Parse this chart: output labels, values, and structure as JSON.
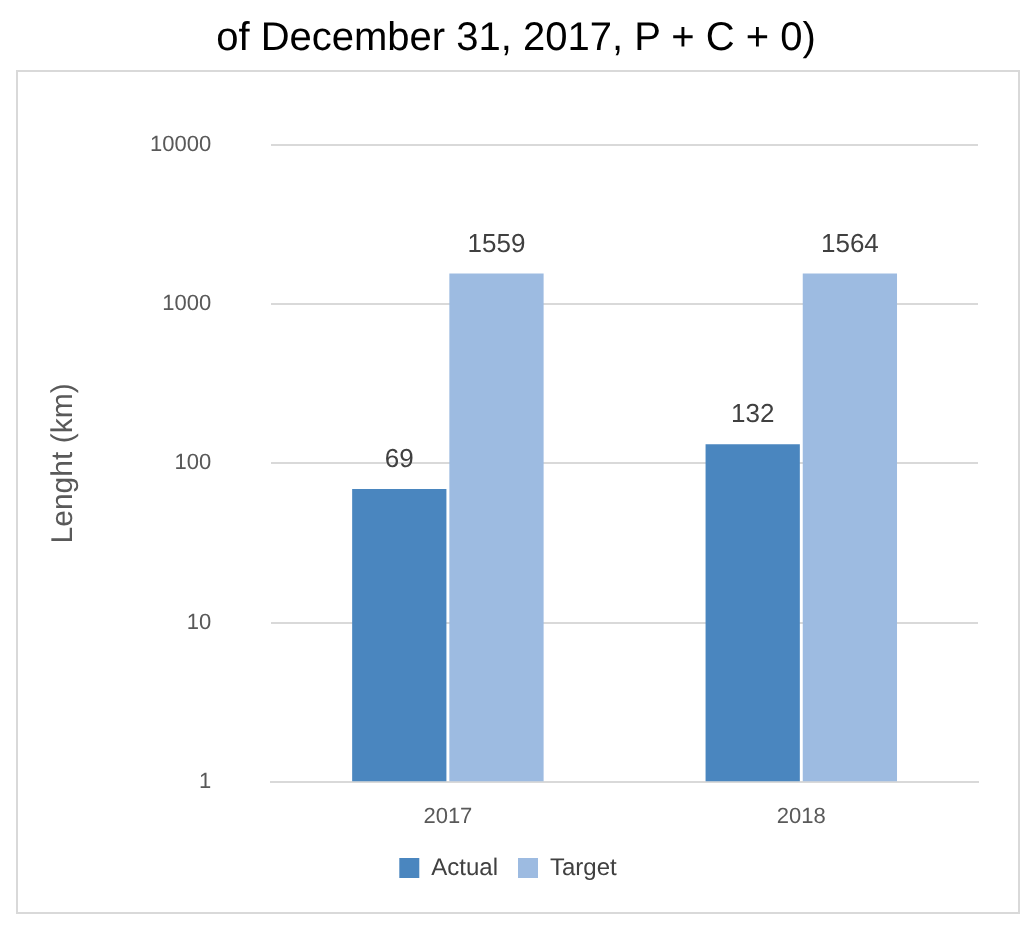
{
  "chart_data": {
    "type": "bar",
    "title": "of December 31, 2017, P + C + 0)",
    "ylabel": "Lenght (km)",
    "categories": [
      "2017",
      "2018"
    ],
    "series": [
      {
        "name": "Actual",
        "color": "#4a86bf",
        "values": [
          69,
          132
        ]
      },
      {
        "name": "Target",
        "color": "#9dbbe1",
        "values": [
          1559,
          1564
        ]
      }
    ],
    "log": true,
    "ylim": [
      1,
      10000
    ],
    "yticks": [
      1,
      10,
      100,
      1000,
      10000
    ],
    "grid": "y",
    "legend": "bottom",
    "data_labels": true
  }
}
